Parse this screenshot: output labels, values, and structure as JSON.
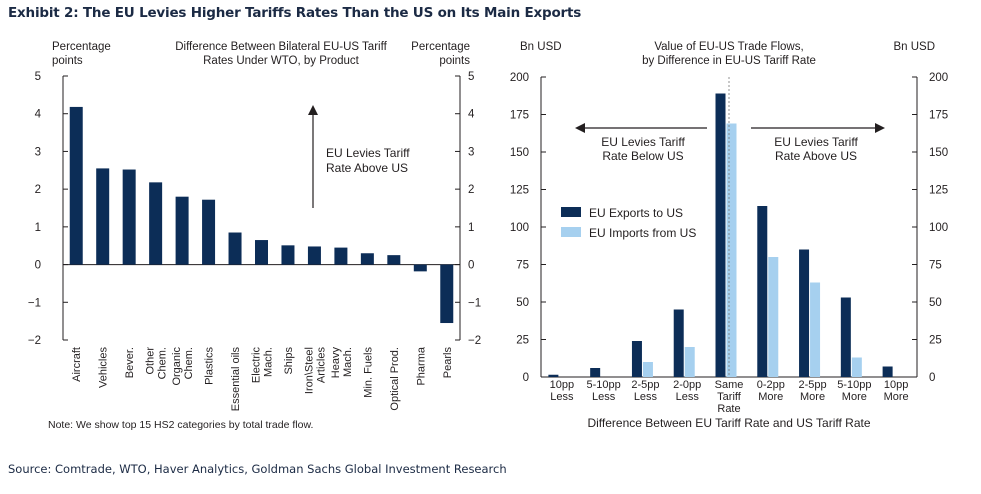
{
  "header": {
    "title": "Exhibit 2: The EU Levies Higher Tariffs Rates Than the US on Its Main Exports"
  },
  "footer": {
    "source": "Source: Comtrade, WTO, Haver Analytics, Goldman Sachs Global Investment Research"
  },
  "colors": {
    "navy": "#0c2d57",
    "light_blue": "#a6d0ef",
    "title": "#1b2a44"
  },
  "chart_data": [
    {
      "type": "bar",
      "title": [
        "Difference Between Bilateral EU-US Tariff",
        "Rates Under WTO, by Product"
      ],
      "ylabel_left": [
        "Percentage",
        "points"
      ],
      "ylabel_right": [
        "Percentage",
        "points"
      ],
      "ylim": [
        -2,
        5
      ],
      "yticks": [
        5,
        4,
        3,
        2,
        1,
        0,
        -1,
        -2
      ],
      "ytick_labels": [
        "5",
        "4",
        "3",
        "2",
        "1",
        "0",
        "−1",
        "−2"
      ],
      "categories": [
        [
          "Aircraft"
        ],
        [
          "Vehicles"
        ],
        [
          "Bever."
        ],
        [
          "Other",
          "Chem."
        ],
        [
          "Organic",
          "Chem."
        ],
        [
          "Plastics"
        ],
        [
          "Essential oils"
        ],
        [
          "Electric",
          "Mach."
        ],
        [
          "Ships"
        ],
        [
          "Iron\\Steel",
          "Articles"
        ],
        [
          "Heavy",
          "Mach."
        ],
        [
          "Min. Fuels"
        ],
        [
          "Optical Prod."
        ],
        [
          "Pharma"
        ],
        [
          "Pearls"
        ]
      ],
      "values": [
        4.18,
        2.55,
        2.52,
        2.18,
        1.8,
        1.72,
        0.85,
        0.65,
        0.51,
        0.48,
        0.45,
        0.3,
        0.25,
        -0.18,
        -1.55
      ],
      "annotation": [
        "EU Levies Tariff",
        "Rate Above US"
      ],
      "note": "Note: We show top 15 HS2 categories by total trade flow.",
      "grid": false,
      "color": "#0c2d57"
    },
    {
      "type": "bar",
      "title": [
        "Value of EU-US Trade Flows,",
        "by Difference in EU-US Tariff Rate"
      ],
      "ylabel_left": "Bn USD",
      "ylabel_right": "Bn USD",
      "xlabel": "Difference Between EU Tariff Rate and US Tariff Rate",
      "ylim": [
        0,
        200
      ],
      "yticks": [
        0,
        25,
        50,
        75,
        100,
        125,
        150,
        175,
        200
      ],
      "categories": [
        [
          "10pp",
          "Less"
        ],
        [
          "5-10pp",
          "Less"
        ],
        [
          "2-5pp",
          "Less"
        ],
        [
          "2-0pp",
          "Less"
        ],
        [
          "Same",
          "Tariff",
          "Rate"
        ],
        [
          "0-2pp",
          "More"
        ],
        [
          "2-5pp",
          "More"
        ],
        [
          "5-10pp",
          "More"
        ],
        [
          "10pp",
          "More"
        ]
      ],
      "series": [
        {
          "name": "EU Exports to US",
          "color": "#0c2d57",
          "values": [
            1.5,
            6,
            24,
            45,
            189,
            114,
            85,
            53,
            7
          ]
        },
        {
          "name": "EU Imports from US",
          "color": "#a6d0ef",
          "values": [
            0,
            0,
            10,
            20,
            169,
            80,
            63,
            13,
            0
          ]
        }
      ],
      "annotations": [
        [
          "EU Levies Tariff",
          "Rate Below US"
        ],
        [
          "EU Levies Tariff",
          "Rate Above US"
        ]
      ],
      "legend_position": "center-left",
      "grid": false
    }
  ]
}
